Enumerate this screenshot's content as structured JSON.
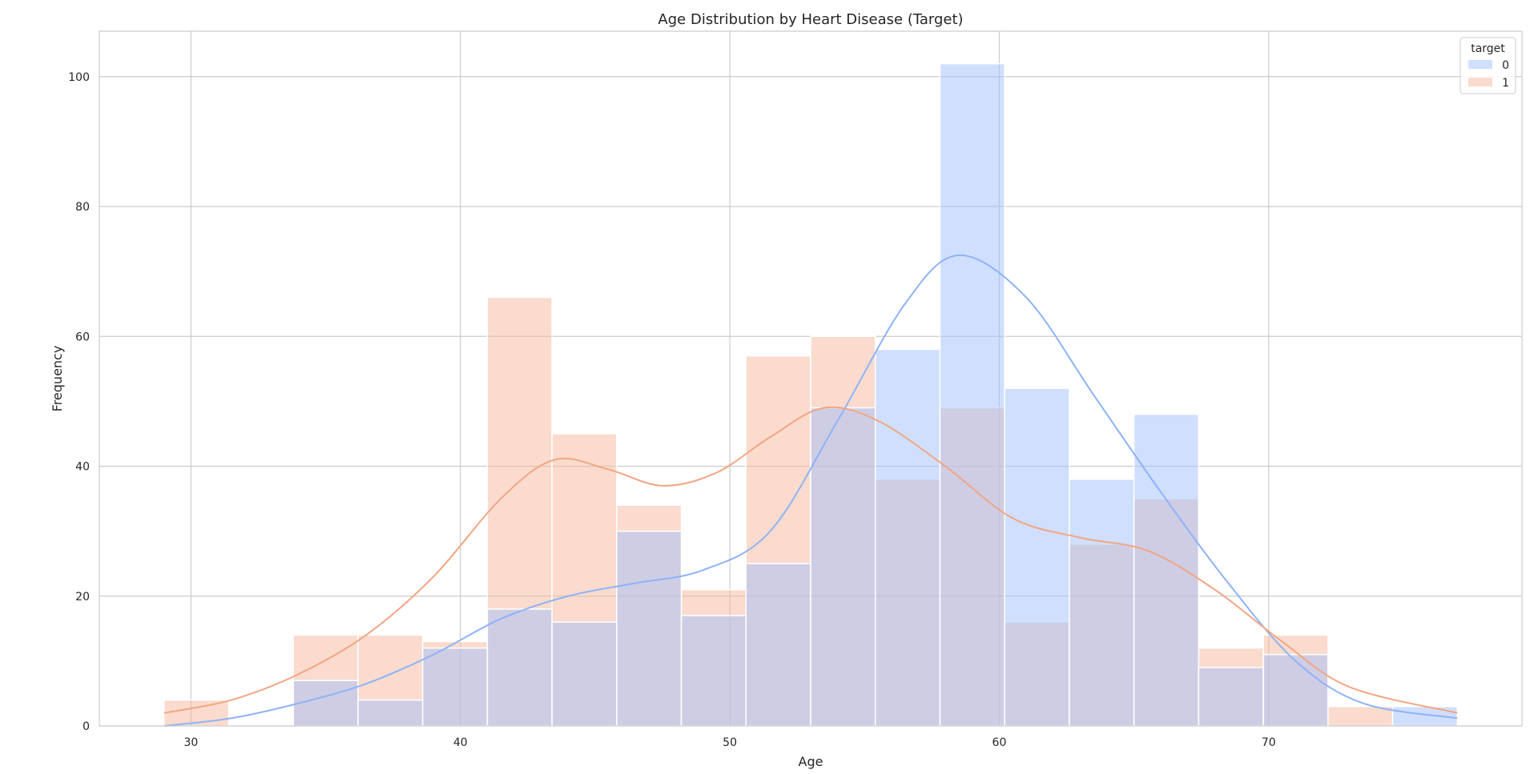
{
  "chart_data": {
    "type": "bar",
    "title": "Age Distribution by Heart Disease (Target)",
    "xlabel": "Age",
    "ylabel": "Frequency",
    "xlim": [
      26.6,
      79.4
    ],
    "ylim": [
      0,
      107
    ],
    "x_ticks": [
      30,
      40,
      50,
      60,
      70
    ],
    "y_ticks": [
      0,
      20,
      40,
      60,
      80,
      100
    ],
    "grid": true,
    "legend": {
      "title": "target",
      "placement": "top-right"
    },
    "bin_edges": [
      29,
      31.4,
      33.8,
      36.2,
      38.6,
      41.0,
      43.4,
      45.8,
      48.2,
      50.6,
      53.0,
      55.4,
      57.8,
      60.2,
      62.6,
      65.0,
      67.4,
      69.8,
      72.2,
      74.6,
      77.0
    ],
    "series": [
      {
        "name": "0",
        "color": "#a1c0fb",
        "values": [
          0,
          0,
          7,
          4,
          12,
          18,
          16,
          30,
          17,
          25,
          49,
          58,
          102,
          52,
          38,
          48,
          9,
          11,
          0,
          3
        ],
        "kde_x": [
          29,
          31.5,
          34,
          36.5,
          39,
          41.5,
          44,
          46.5,
          49,
          51.5,
          54,
          56.5,
          58.5,
          61,
          63.5,
          66,
          68.5,
          71,
          73.5,
          77
        ],
        "kde_y": [
          0,
          1.2,
          3.5,
          6.5,
          11,
          16.5,
          20,
          22,
          24,
          30,
          47,
          65,
          72.5,
          66,
          51,
          36,
          22,
          10,
          3.5,
          1.2
        ]
      },
      {
        "name": "1",
        "color": "#f6b79b",
        "values": [
          4,
          0,
          14,
          14,
          13,
          66,
          45,
          34,
          21,
          57,
          60,
          38,
          49,
          16,
          28,
          35,
          12,
          14,
          3,
          0
        ],
        "kde_x": [
          29,
          31.5,
          34,
          36.5,
          39,
          41.5,
          43.5,
          45.5,
          47.5,
          49.5,
          51.5,
          53.5,
          55.5,
          58,
          60.5,
          63,
          65.5,
          68,
          70.5,
          73,
          77
        ],
        "kde_y": [
          2,
          4,
          8,
          14,
          23,
          35,
          41,
          39.5,
          37,
          39,
          44.5,
          49,
          47,
          40,
          32,
          29,
          27,
          21,
          13,
          6,
          2
        ]
      }
    ]
  }
}
